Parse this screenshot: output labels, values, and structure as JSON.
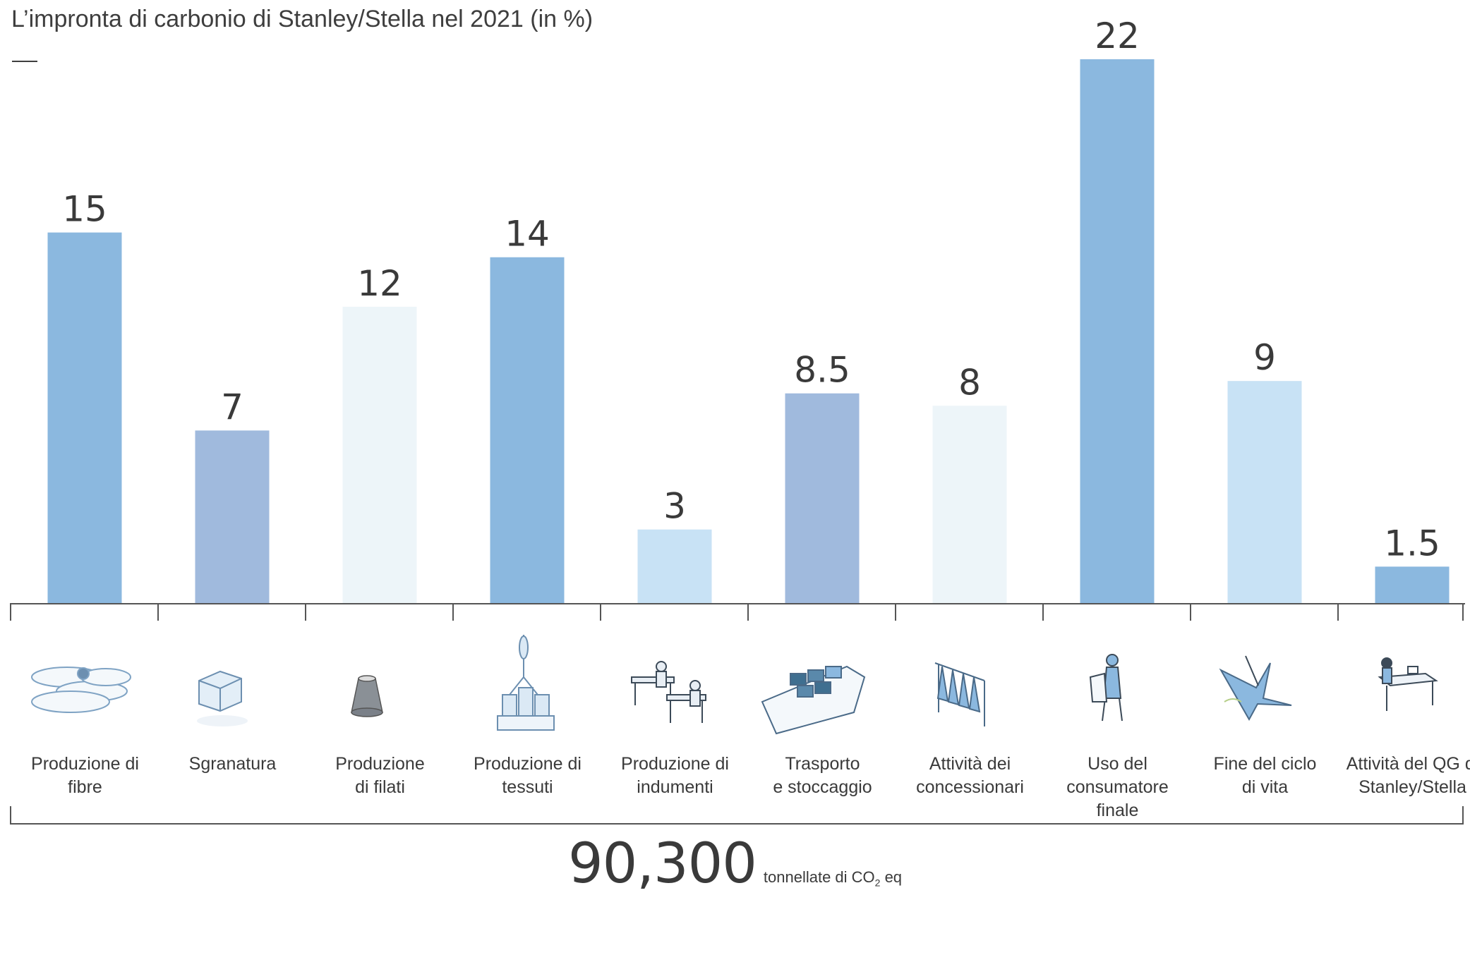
{
  "title": "L’impronta di carbonio di Stanley/Stella nel 2021 (in %)",
  "chart_data": {
    "type": "bar",
    "title": "L’impronta di carbonio di Stanley/Stella nel 2021 (in %)",
    "categories": [
      [
        "Produzione di",
        "fibre"
      ],
      [
        "Sgranatura"
      ],
      [
        "Produzione",
        "di filati"
      ],
      [
        "Produzione di",
        "tessuti"
      ],
      [
        "Produzione di",
        "indumenti"
      ],
      [
        "Trasporto",
        "e stoccaggio"
      ],
      [
        "Attività dei",
        "concessionari"
      ],
      [
        "Uso del",
        "consumatore finale"
      ],
      [
        "Fine del ciclo",
        "di vita"
      ],
      [
        "Attività del QG di",
        "Stanley/Stella"
      ]
    ],
    "values": [
      15,
      7,
      12,
      14,
      3,
      8.5,
      8,
      22,
      9,
      1.5
    ],
    "value_labels": [
      "15",
      "7",
      "12",
      "14",
      "3",
      "8.5",
      "8",
      "22",
      "9",
      "1.5"
    ],
    "colors": [
      "#8bb8df",
      "#a0badd",
      "#edf5f9",
      "#8bb8df",
      "#c8e2f5",
      "#a0badd",
      "#edf5f9",
      "#8bb8df",
      "#c8e2f5",
      "#8bb8df"
    ],
    "icons": [
      "cotton-bales-icon",
      "ginning-bale-icon",
      "yarn-spool-icon",
      "fabric-machine-icon",
      "sewing-workers-icon",
      "cargo-ship-icon",
      "clothing-rack-icon",
      "consumer-icon",
      "end-of-life-icon",
      "office-desk-icon"
    ],
    "ylim": [
      0,
      22
    ],
    "xlabel": "",
    "ylabel": "",
    "grid": false
  },
  "total": {
    "value": "90,300",
    "unit_prefix": "tonnellate di CO",
    "unit_sub": "2",
    "unit_suffix": " eq"
  }
}
